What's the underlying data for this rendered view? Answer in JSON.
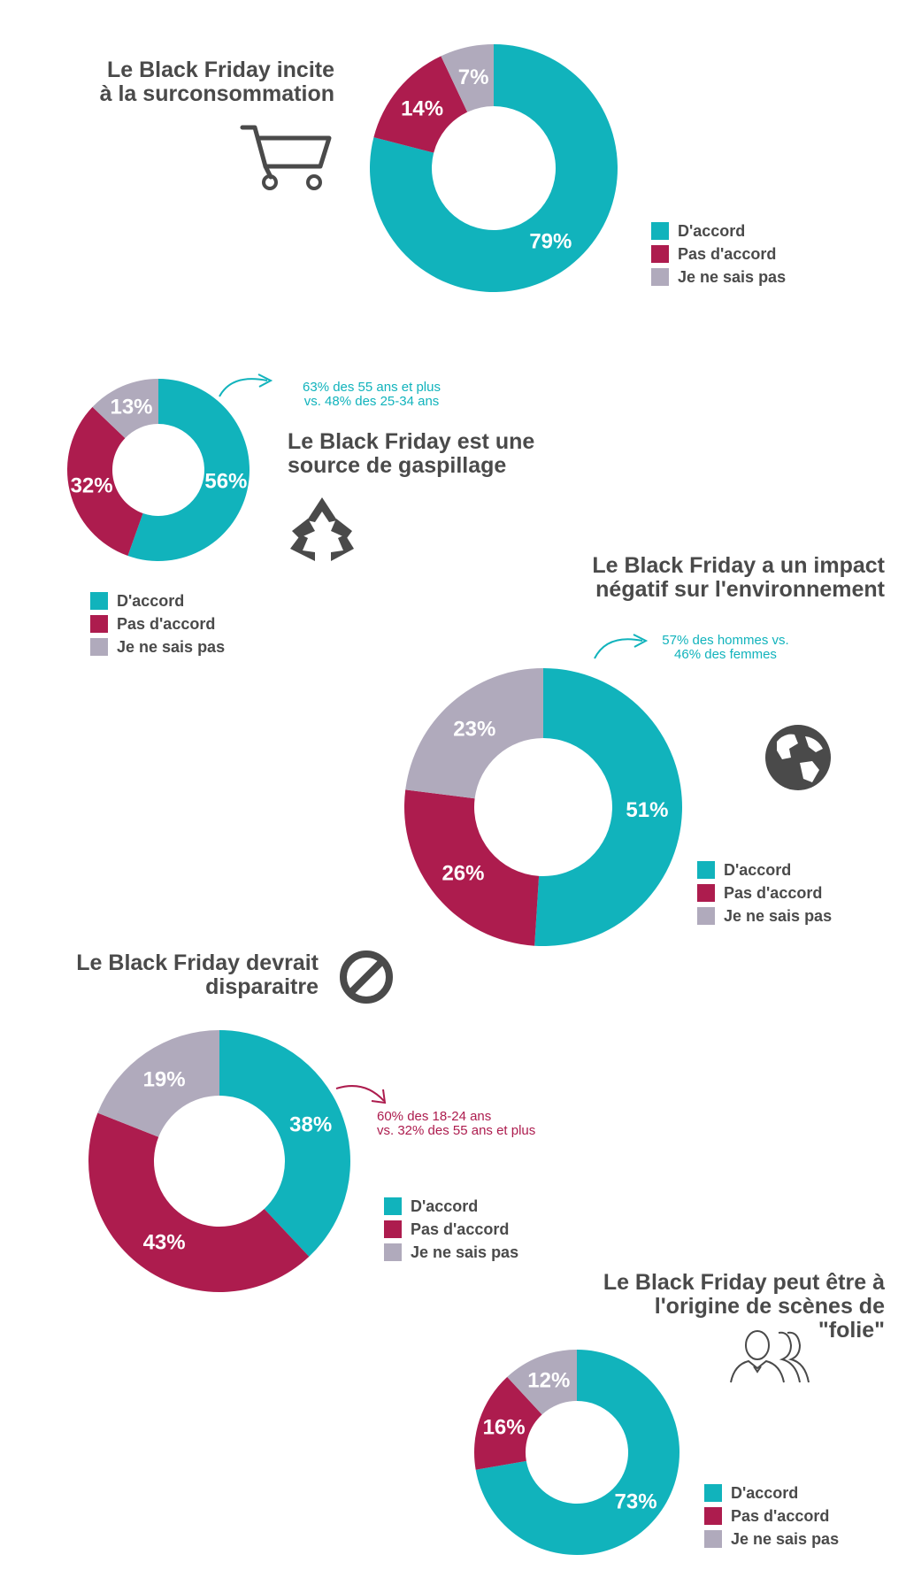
{
  "colors": {
    "agree": "#11b3bc",
    "disagree": "#ad1c4e",
    "unsure": "#b0aabc",
    "text": "#4a4a4a"
  },
  "legend": [
    "D'accord",
    "Pas d'accord",
    "Je ne sais pas"
  ],
  "chart_data": [
    {
      "type": "pie",
      "title_lines": [
        "Le Black Friday incite",
        "à la surconsommation"
      ],
      "categories": [
        "D'accord",
        "Pas d'accord",
        "Je ne sais pas"
      ],
      "values": [
        79,
        14,
        7
      ],
      "labels": [
        "79%",
        "14%",
        "7%"
      ],
      "icon": "shopping-cart-icon"
    },
    {
      "type": "pie",
      "title_lines": [
        "Le Black Friday est une",
        "source de gaspillage"
      ],
      "categories": [
        "D'accord",
        "Pas d'accord",
        "Je ne sais pas"
      ],
      "values": [
        56,
        32,
        13
      ],
      "labels": [
        "56%",
        "32%",
        "13%"
      ],
      "annotation_lines": [
        "63% des 55 ans et plus",
        "vs. 48% des 25-34 ans"
      ],
      "icon": "recycle-icon"
    },
    {
      "type": "pie",
      "title_lines": [
        "Le Black Friday a un impact",
        "négatif sur l'environnement"
      ],
      "categories": [
        "D'accord",
        "Pas d'accord",
        "Je ne sais pas"
      ],
      "values": [
        51,
        26,
        23
      ],
      "labels": [
        "51%",
        "26%",
        "23%"
      ],
      "annotation_lines": [
        "57% des hommes vs.",
        "46% des femmes"
      ],
      "icon": "globe-icon"
    },
    {
      "type": "pie",
      "title_lines": [
        "Le Black Friday devrait",
        "disparaitre"
      ],
      "categories": [
        "D'accord",
        "Pas d'accord",
        "Je ne sais pas"
      ],
      "values": [
        38,
        43,
        19
      ],
      "labels": [
        "38%",
        "43%",
        "19%"
      ],
      "annotation_lines": [
        "60% des 18-24 ans",
        "vs. 32% des 55 ans et plus"
      ],
      "icon": "prohibited-icon"
    },
    {
      "type": "pie",
      "title_lines": [
        "Le Black Friday peut être à",
        "l'origine de scènes de",
        "\"folie\""
      ],
      "categories": [
        "D'accord",
        "Pas d'accord",
        "Je ne sais pas"
      ],
      "values": [
        73,
        16,
        12
      ],
      "labels": [
        "73%",
        "16%",
        "12%"
      ],
      "icon": "crowd-icon"
    }
  ]
}
